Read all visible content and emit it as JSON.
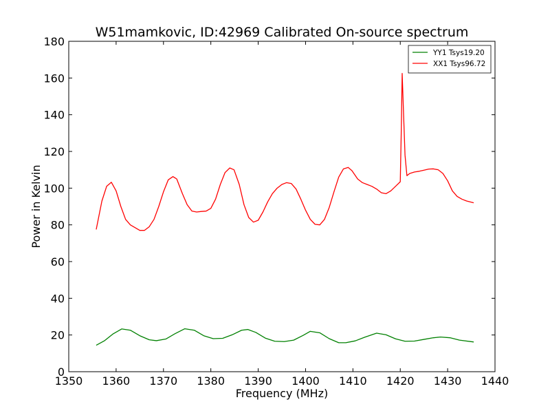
{
  "chart_data": {
    "type": "line",
    "title": "W51mamkovic, ID:42969 Calibrated On-source spectrum",
    "xlabel": "Frequency (MHz)",
    "ylabel": "Power in Kelvin",
    "xlim": [
      1350,
      1440
    ],
    "ylim": [
      0,
      180
    ],
    "xticks": [
      1350,
      1360,
      1370,
      1380,
      1390,
      1400,
      1410,
      1420,
      1430,
      1440
    ],
    "yticks": [
      0,
      20,
      40,
      60,
      80,
      100,
      120,
      140,
      160,
      180
    ],
    "grid": false,
    "legend_position": "top-right",
    "series": [
      {
        "name": "YY1 Tsys19.20",
        "color": "#008000",
        "x": [
          1355.8,
          1357.5,
          1359.3,
          1361.2,
          1363.0,
          1365.0,
          1367.0,
          1368.5,
          1370.5,
          1372.5,
          1374.5,
          1376.5,
          1378.5,
          1380.5,
          1382.5,
          1384.5,
          1386.5,
          1387.8,
          1389.5,
          1391.5,
          1393.5,
          1395.5,
          1397.5,
          1399.5,
          1401.0,
          1403.0,
          1405.0,
          1407.0,
          1408.5,
          1410.5,
          1412.5,
          1415.0,
          1417.0,
          1419.0,
          1421.0,
          1423.0,
          1425.0,
          1427.0,
          1428.5,
          1430.5,
          1432.5,
          1435.5
        ],
        "values": [
          14.4,
          16.8,
          20.5,
          23.3,
          22.6,
          19.6,
          17.4,
          16.9,
          17.8,
          20.8,
          23.4,
          22.6,
          19.6,
          18.0,
          18.2,
          20.1,
          22.6,
          23.0,
          21.4,
          18.3,
          16.6,
          16.4,
          17.2,
          19.8,
          22.0,
          21.2,
          18.0,
          15.8,
          15.8,
          16.8,
          18.8,
          21.0,
          20.1,
          17.9,
          16.6,
          16.7,
          17.6,
          18.5,
          18.9,
          18.5,
          17.2,
          16.2
        ]
      },
      {
        "name": "XX1 Tsys96.72",
        "color": "#ff0000",
        "x": [
          1355.8,
          1357.0,
          1358.0,
          1359.0,
          1360.0,
          1361.0,
          1362.0,
          1363.0,
          1364.0,
          1365.0,
          1366.0,
          1367.0,
          1368.0,
          1369.0,
          1370.0,
          1371.0,
          1372.0,
          1372.8,
          1374.0,
          1375.0,
          1376.0,
          1377.0,
          1378.0,
          1379.0,
          1380.0,
          1381.0,
          1382.0,
          1383.0,
          1384.0,
          1384.9,
          1386.0,
          1387.0,
          1388.0,
          1389.0,
          1390.0,
          1391.0,
          1392.0,
          1393.0,
          1394.0,
          1395.0,
          1396.0,
          1397.0,
          1398.0,
          1399.0,
          1400.0,
          1401.0,
          1402.0,
          1403.0,
          1404.0,
          1405.0,
          1406.0,
          1407.0,
          1408.0,
          1409.0,
          1409.8,
          1411.0,
          1412.0,
          1413.0,
          1414.0,
          1415.0,
          1416.0,
          1417.0,
          1418.0,
          1419.0,
          1420.0,
          1420.2,
          1420.4,
          1420.7,
          1421.0,
          1421.4,
          1422.0,
          1423.0,
          1424.0,
          1425.0,
          1426.0,
          1427.0,
          1428.0,
          1429.0,
          1430.0,
          1431.0,
          1432.0,
          1433.0,
          1434.0,
          1435.5
        ],
        "values": [
          77.5,
          93.0,
          101.0,
          103.2,
          98.5,
          90.0,
          83.0,
          80.0,
          78.5,
          77.0,
          77.0,
          79.0,
          83.0,
          90.0,
          98.0,
          104.5,
          106.3,
          105.0,
          97.0,
          91.0,
          87.5,
          87.0,
          87.3,
          87.5,
          89.0,
          94.0,
          102.0,
          108.5,
          111.0,
          110.0,
          102.0,
          91.0,
          84.0,
          81.5,
          82.5,
          87.0,
          92.5,
          97.0,
          100.0,
          102.0,
          103.0,
          102.5,
          99.5,
          94.0,
          88.0,
          83.0,
          80.3,
          80.0,
          83.0,
          89.5,
          98.0,
          106.0,
          110.5,
          111.3,
          109.5,
          105.0,
          103.0,
          102.0,
          101.0,
          99.5,
          97.5,
          97.0,
          98.5,
          101.0,
          103.5,
          130.0,
          162.5,
          140.0,
          118.0,
          106.8,
          108.0,
          108.8,
          109.2,
          109.8,
          110.4,
          110.5,
          110.0,
          108.0,
          104.0,
          98.5,
          95.5,
          94.0,
          93.0,
          92.0
        ]
      }
    ]
  }
}
